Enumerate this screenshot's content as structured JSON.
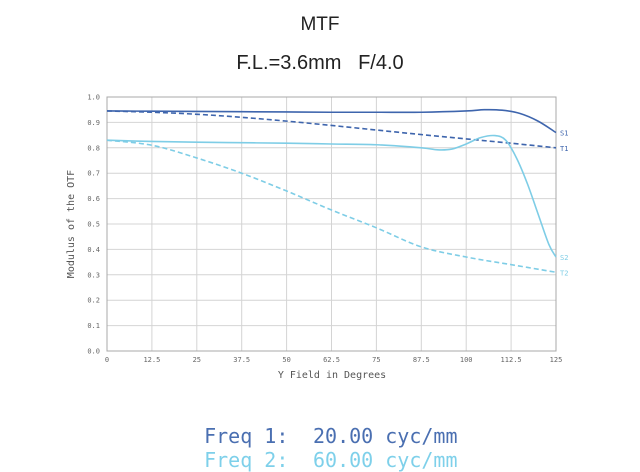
{
  "chart_data": {
    "type": "line",
    "title": "MTF",
    "subtitle_focal": "F.L.=3.6mm",
    "subtitle_aperture": "F/4.0",
    "xlabel": "Y Field in Degrees",
    "ylabel": "Modulus of the OTF",
    "xlim": [
      0,
      125
    ],
    "ylim": [
      0,
      1.0
    ],
    "xticks": [
      "0",
      "12.5",
      "25",
      "37.5",
      "50",
      "62.5",
      "75",
      "87.5",
      "100",
      "112.5",
      "125"
    ],
    "yticks": [
      "0.0",
      "0.1",
      "0.2",
      "0.3",
      "0.4",
      "0.5",
      "0.6",
      "0.7",
      "0.8",
      "0.9",
      "1.0"
    ],
    "grid": true,
    "series": [
      {
        "name": "S1",
        "color": "#3e65ad",
        "dash": false,
        "x": [
          0,
          12.5,
          25,
          37.5,
          50,
          62.5,
          75,
          87.5,
          100,
          105,
          110,
          115,
          120,
          125
        ],
        "y": [
          0.945,
          0.944,
          0.943,
          0.942,
          0.941,
          0.94,
          0.94,
          0.94,
          0.945,
          0.95,
          0.948,
          0.935,
          0.905,
          0.86
        ]
      },
      {
        "name": "T1",
        "color": "#3e65ad",
        "dash": true,
        "x": [
          0,
          12.5,
          25,
          37.5,
          50,
          62.5,
          75,
          87.5,
          100,
          112.5,
          125
        ],
        "y": [
          0.945,
          0.94,
          0.932,
          0.92,
          0.905,
          0.888,
          0.87,
          0.852,
          0.835,
          0.818,
          0.8
        ]
      },
      {
        "name": "S2",
        "color": "#7ecde6",
        "dash": false,
        "x": [
          0,
          12.5,
          25,
          37.5,
          50,
          62.5,
          75,
          87.5,
          92,
          96,
          100,
          104,
          108,
          111,
          114,
          117,
          120,
          123,
          125
        ],
        "y": [
          0.83,
          0.825,
          0.822,
          0.82,
          0.818,
          0.815,
          0.812,
          0.8,
          0.792,
          0.795,
          0.815,
          0.84,
          0.848,
          0.83,
          0.76,
          0.66,
          0.54,
          0.42,
          0.37
        ]
      },
      {
        "name": "T2",
        "color": "#7ecde6",
        "dash": true,
        "x": [
          0,
          12.5,
          25,
          37.5,
          50,
          62.5,
          75,
          87.5,
          100,
          112.5,
          125
        ],
        "y": [
          0.83,
          0.81,
          0.76,
          0.7,
          0.63,
          0.555,
          0.485,
          0.41,
          0.37,
          0.34,
          0.31
        ]
      }
    ]
  },
  "freq": [
    {
      "label": "Freq 1:",
      "value": "20.00 cyc/mm",
      "color": "#4a6fb1"
    },
    {
      "label": "Freq 2:",
      "value": "60.00 cyc/mm",
      "color": "#7ed0ea"
    }
  ]
}
